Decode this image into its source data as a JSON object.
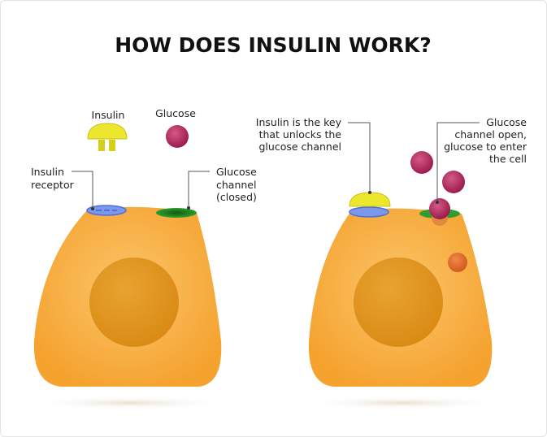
{
  "title": "HOW DOES INSULIN WORK?",
  "legend": {
    "insulin": "Insulin",
    "glucose": "Glucose"
  },
  "left_cell": {
    "receptor_label": [
      "Insulin",
      "receptor"
    ],
    "channel_label": [
      "Glucose",
      "channel",
      "(closed)"
    ]
  },
  "right_cell": {
    "key_label": [
      "Insulin is the key",
      "that unlocks the",
      "glucose channel"
    ],
    "open_label": [
      "Glucose",
      "channel open,",
      "glucose to enter",
      "the cell"
    ]
  },
  "colors": {
    "cell": "#f7a93a",
    "nucleus": "#e0961f",
    "insulin": "#e8e52a",
    "glucose": "#b0245a",
    "receptor": "#6f8fe8",
    "channel": "#2a9a2a"
  }
}
